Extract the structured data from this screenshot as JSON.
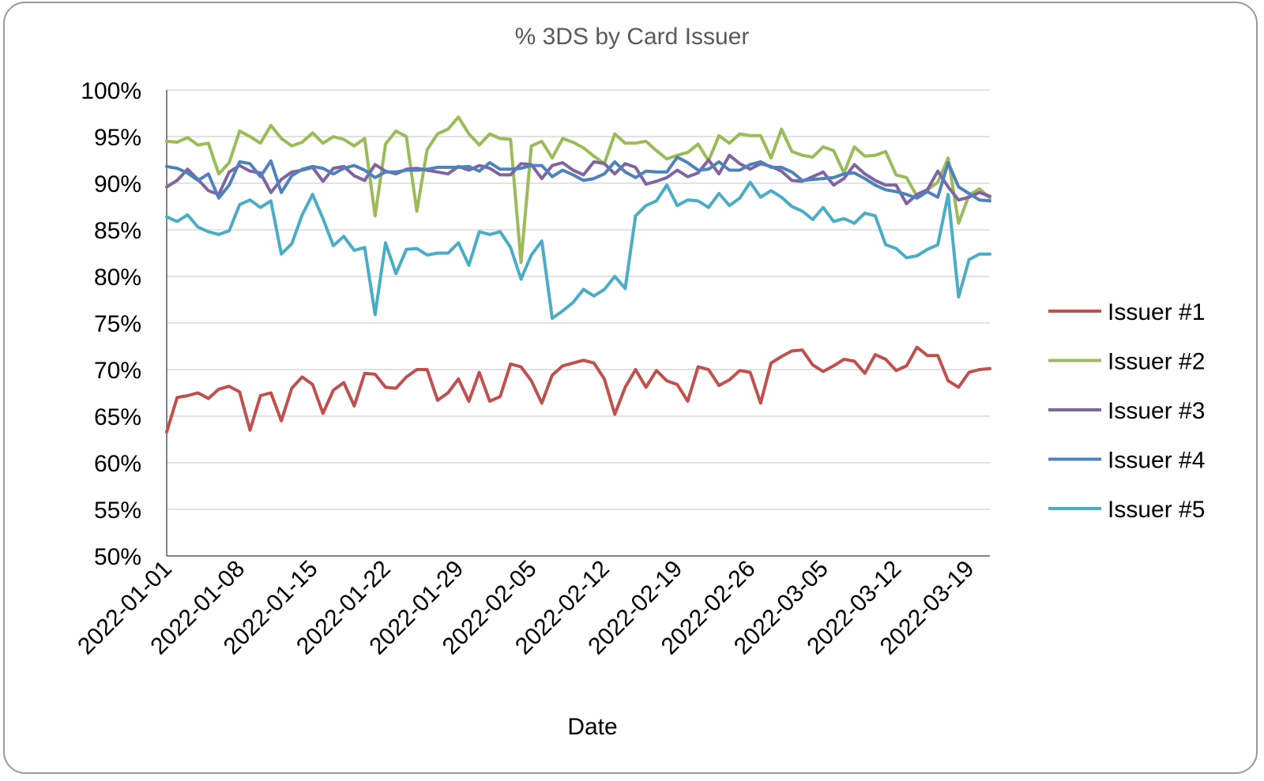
{
  "chart_data": {
    "type": "line",
    "title": "% 3DS by Card Issuer",
    "xlabel": "Date",
    "ylabel": "",
    "ylim": [
      0.5,
      1.0
    ],
    "y_ticks": [
      {
        "value": 0.5,
        "label": "50%"
      },
      {
        "value": 0.55,
        "label": "55%"
      },
      {
        "value": 0.6,
        "label": "60%"
      },
      {
        "value": 0.65,
        "label": "65%"
      },
      {
        "value": 0.7,
        "label": "70%"
      },
      {
        "value": 0.75,
        "label": "75%"
      },
      {
        "value": 0.8,
        "label": "80%"
      },
      {
        "value": 0.85,
        "label": "85%"
      },
      {
        "value": 0.9,
        "label": "90%"
      },
      {
        "value": 0.95,
        "label": "95%"
      },
      {
        "value": 1.0,
        "label": "100%"
      }
    ],
    "x_start": "2022-01-01",
    "x_end": "2022-03-21",
    "x_tick_labels": [
      "2022-01-01",
      "2022-01-08",
      "2022-01-15",
      "2022-01-22",
      "2022-01-29",
      "2022-02-05",
      "2022-02-12",
      "2022-02-19",
      "2022-02-26",
      "2022-03-05",
      "2022-03-12",
      "2022-03-19"
    ],
    "grid": true,
    "legend_position": "right",
    "series": [
      {
        "name": "Issuer #1",
        "color": "#C0504D",
        "values": [
          0.633,
          0.67,
          0.672,
          0.675,
          0.669,
          0.679,
          0.682,
          0.676,
          0.635,
          0.672,
          0.675,
          0.645,
          0.68,
          0.692,
          0.684,
          0.653,
          0.678,
          0.686,
          0.661,
          0.696,
          0.695,
          0.681,
          0.68,
          0.692,
          0.7,
          0.7,
          0.667,
          0.675,
          0.69,
          0.666,
          0.697,
          0.666,
          0.671,
          0.706,
          0.703,
          0.688,
          0.664,
          0.694,
          0.704,
          0.707,
          0.71,
          0.707,
          0.69,
          0.652,
          0.681,
          0.7,
          0.681,
          0.699,
          0.688,
          0.684,
          0.666,
          0.703,
          0.7,
          0.683,
          0.689,
          0.699,
          0.697,
          0.664,
          0.707,
          0.714,
          0.72,
          0.721,
          0.705,
          0.698,
          0.704,
          0.711,
          0.709,
          0.696,
          0.716,
          0.711,
          0.699,
          0.704,
          0.724,
          0.715,
          0.715,
          0.688,
          0.681,
          0.697,
          0.7,
          0.701
        ]
      },
      {
        "name": "Issuer #2",
        "color": "#9BBB59",
        "values": [
          0.945,
          0.944,
          0.949,
          0.941,
          0.943,
          0.91,
          0.922,
          0.956,
          0.95,
          0.943,
          0.962,
          0.948,
          0.94,
          0.944,
          0.954,
          0.943,
          0.95,
          0.947,
          0.94,
          0.948,
          0.865,
          0.942,
          0.956,
          0.95,
          0.87,
          0.936,
          0.953,
          0.958,
          0.971,
          0.953,
          0.941,
          0.953,
          0.948,
          0.947,
          0.815,
          0.94,
          0.945,
          0.927,
          0.948,
          0.944,
          0.938,
          0.929,
          0.921,
          0.953,
          0.943,
          0.943,
          0.945,
          0.935,
          0.926,
          0.93,
          0.933,
          0.942,
          0.924,
          0.951,
          0.943,
          0.953,
          0.951,
          0.951,
          0.927,
          0.958,
          0.934,
          0.93,
          0.928,
          0.939,
          0.935,
          0.911,
          0.939,
          0.929,
          0.93,
          0.934,
          0.909,
          0.906,
          0.886,
          0.893,
          0.901,
          0.927,
          0.857,
          0.887,
          0.894,
          0.884
        ]
      },
      {
        "name": "Issuer #3",
        "color": "#8064A2",
        "values": [
          0.896,
          0.903,
          0.915,
          0.904,
          0.892,
          0.888,
          0.912,
          0.919,
          0.913,
          0.911,
          0.89,
          0.904,
          0.912,
          0.914,
          0.917,
          0.902,
          0.916,
          0.918,
          0.908,
          0.903,
          0.92,
          0.913,
          0.91,
          0.915,
          0.916,
          0.914,
          0.912,
          0.91,
          0.918,
          0.914,
          0.919,
          0.916,
          0.909,
          0.909,
          0.921,
          0.92,
          0.905,
          0.919,
          0.922,
          0.914,
          0.909,
          0.923,
          0.921,
          0.91,
          0.921,
          0.917,
          0.899,
          0.902,
          0.906,
          0.914,
          0.907,
          0.911,
          0.925,
          0.91,
          0.93,
          0.921,
          0.915,
          0.921,
          0.918,
          0.913,
          0.903,
          0.902,
          0.907,
          0.912,
          0.898,
          0.905,
          0.92,
          0.91,
          0.903,
          0.898,
          0.898,
          0.878,
          0.888,
          0.893,
          0.913,
          0.896,
          0.882,
          0.885,
          0.89,
          0.886
        ]
      },
      {
        "name": "Issuer #4",
        "color": "#4F81BD",
        "values": [
          0.918,
          0.916,
          0.911,
          0.903,
          0.91,
          0.884,
          0.898,
          0.923,
          0.921,
          0.907,
          0.924,
          0.89,
          0.908,
          0.915,
          0.918,
          0.916,
          0.91,
          0.916,
          0.919,
          0.914,
          0.906,
          0.912,
          0.912,
          0.914,
          0.914,
          0.915,
          0.917,
          0.917,
          0.917,
          0.918,
          0.913,
          0.922,
          0.915,
          0.915,
          0.916,
          0.919,
          0.919,
          0.907,
          0.914,
          0.909,
          0.903,
          0.905,
          0.91,
          0.923,
          0.912,
          0.906,
          0.913,
          0.912,
          0.912,
          0.928,
          0.922,
          0.914,
          0.915,
          0.923,
          0.914,
          0.914,
          0.92,
          0.923,
          0.917,
          0.917,
          0.912,
          0.903,
          0.904,
          0.905,
          0.906,
          0.91,
          0.911,
          0.905,
          0.898,
          0.893,
          0.891,
          0.888,
          0.884,
          0.891,
          0.885,
          0.922,
          0.896,
          0.889,
          0.882,
          0.881
        ]
      },
      {
        "name": "Issuer #5",
        "color": "#4BACC6",
        "values": [
          0.864,
          0.859,
          0.866,
          0.853,
          0.848,
          0.845,
          0.849,
          0.877,
          0.882,
          0.874,
          0.881,
          0.824,
          0.835,
          0.866,
          0.888,
          0.862,
          0.833,
          0.843,
          0.828,
          0.831,
          0.759,
          0.836,
          0.803,
          0.829,
          0.83,
          0.823,
          0.825,
          0.825,
          0.836,
          0.812,
          0.848,
          0.845,
          0.848,
          0.831,
          0.797,
          0.823,
          0.838,
          0.755,
          0.763,
          0.772,
          0.786,
          0.779,
          0.786,
          0.8,
          0.787,
          0.865,
          0.876,
          0.881,
          0.898,
          0.876,
          0.882,
          0.881,
          0.874,
          0.889,
          0.876,
          0.884,
          0.901,
          0.885,
          0.892,
          0.885,
          0.875,
          0.87,
          0.861,
          0.874,
          0.859,
          0.862,
          0.857,
          0.868,
          0.865,
          0.834,
          0.83,
          0.82,
          0.822,
          0.829,
          0.834,
          0.888,
          0.778,
          0.818,
          0.824,
          0.824
        ]
      }
    ]
  }
}
